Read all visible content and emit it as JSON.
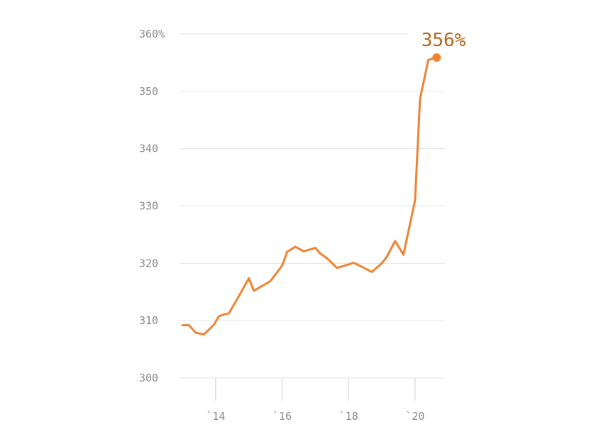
{
  "chart_data": {
    "type": "line",
    "title": "",
    "xlabel": "",
    "ylabel": "",
    "xlim": [
      2012.7,
      2020.9
    ],
    "ylim": [
      300,
      360
    ],
    "grid": true,
    "y_ticks": [
      {
        "value": 300,
        "label": "300"
      },
      {
        "value": 310,
        "label": "310"
      },
      {
        "value": 320,
        "label": "320"
      },
      {
        "value": 330,
        "label": "330"
      },
      {
        "value": 340,
        "label": "340"
      },
      {
        "value": 350,
        "label": "350"
      },
      {
        "value": 360,
        "label": "360%"
      }
    ],
    "x_ticks": [
      {
        "value": 2014,
        "label": "`14"
      },
      {
        "value": 2016,
        "label": "`16"
      },
      {
        "value": 2018,
        "label": "`18"
      },
      {
        "value": 2020,
        "label": "`20"
      }
    ],
    "series": [
      {
        "color": "#ee8433",
        "x": [
          2013.0,
          2013.2,
          2013.4,
          2013.65,
          2013.95,
          2014.1,
          2014.4,
          2014.7,
          2015.0,
          2015.15,
          2015.35,
          2015.65,
          2016.0,
          2016.15,
          2016.4,
          2016.65,
          2017.0,
          2017.15,
          2017.35,
          2017.65,
          2018.0,
          2018.15,
          2018.4,
          2018.7,
          2019.0,
          2019.15,
          2019.4,
          2019.65,
          2020.0,
          2020.15,
          2020.4,
          2020.65
        ],
        "y": [
          309.2,
          309.2,
          307.9,
          307.6,
          309.3,
          310.8,
          311.3,
          314.3,
          317.4,
          315.2,
          315.9,
          316.9,
          319.6,
          322.0,
          322.9,
          322.1,
          322.7,
          321.7,
          320.9,
          319.2,
          319.8,
          320.1,
          319.4,
          318.5,
          320.0,
          321.1,
          323.9,
          321.5,
          331.0,
          348.7,
          355.5,
          355.9
        ]
      }
    ],
    "end_point": {
      "x": 2020.65,
      "y": 355.9,
      "label": "356%",
      "label_color": "#b5651d"
    }
  }
}
